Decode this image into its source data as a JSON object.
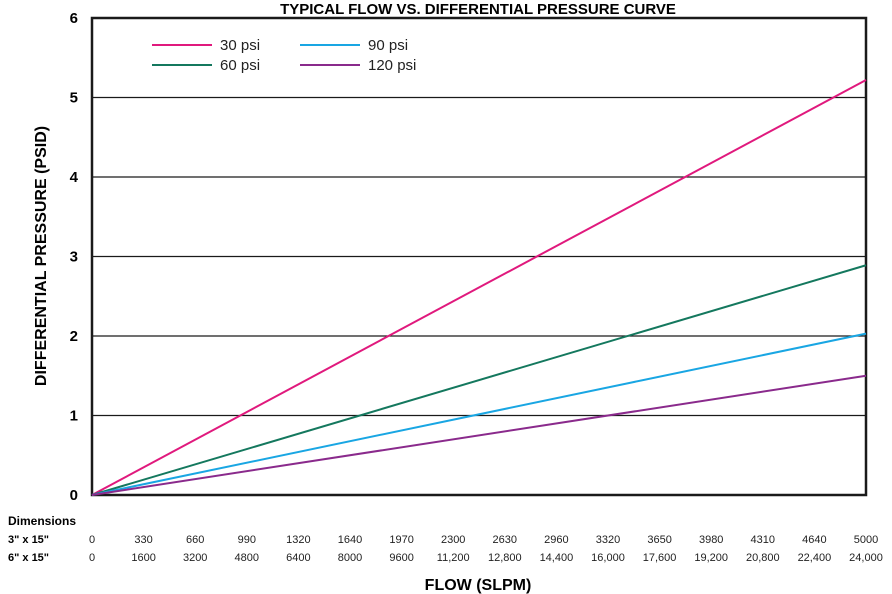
{
  "chart_data": {
    "type": "line",
    "title": "TYPICAL FLOW VS. DIFFERENTIAL PRESSURE CURVE",
    "xlabel": "FLOW (SLPM)",
    "ylabel": "DIFFERENTIAL PRESSURE (PSID)",
    "ylim": [
      0,
      6
    ],
    "yticks": [
      "0",
      "1",
      "2",
      "3",
      "4",
      "5",
      "6"
    ],
    "grid": "horizontal",
    "legend_position": "top-left",
    "x_axis_rows_header": "Dimensions",
    "x_axis_rows": [
      {
        "label": "3\" x 15\"",
        "ticks": [
          "0",
          "330",
          "660",
          "990",
          "1320",
          "1640",
          "1970",
          "2300",
          "2630",
          "2960",
          "3320",
          "3650",
          "3980",
          "4310",
          "4640",
          "5000"
        ]
      },
      {
        "label": "6\" x 15\"",
        "ticks": [
          "0",
          "1600",
          "3200",
          "4800",
          "6400",
          "8000",
          "9600",
          "11,200",
          "12,800",
          "14,400",
          "16,000",
          "17,600",
          "19,200",
          "20,800",
          "22,400",
          "24,000"
        ]
      }
    ],
    "x": [
      0,
      5000
    ],
    "xlim": [
      0,
      5000
    ],
    "series": [
      {
        "name": "30 psi",
        "color": "#e0197d",
        "x": [
          0,
          5000
        ],
        "y": [
          0,
          5.22
        ]
      },
      {
        "name": "60 psi",
        "color": "#14785e",
        "x": [
          0,
          5000
        ],
        "y": [
          0,
          2.89
        ]
      },
      {
        "name": "90 psi",
        "color": "#19a6e3",
        "x": [
          0,
          5000
        ],
        "y": [
          0,
          2.03
        ]
      },
      {
        "name": "120 psi",
        "color": "#8a2a8c",
        "x": [
          0,
          5000
        ],
        "y": [
          0,
          1.5
        ]
      }
    ]
  }
}
